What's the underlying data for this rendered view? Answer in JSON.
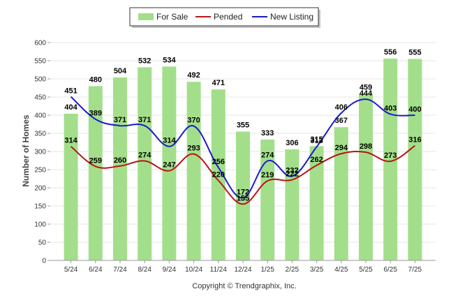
{
  "legend": {
    "items": [
      {
        "label": "For Sale",
        "color": "#a3df8a",
        "kind": "bar"
      },
      {
        "label": "Pended",
        "color": "#b81414",
        "kind": "line"
      },
      {
        "label": "New Listing",
        "color": "#1a1acc",
        "kind": "line"
      }
    ]
  },
  "copyright": "Copyright © Trendgraphix, Inc.",
  "chart_data": {
    "type": "bar",
    "ylabel": "Number of Homes",
    "xlabel": "",
    "ylim": [
      0,
      600
    ],
    "yticks": [
      0,
      50,
      100,
      150,
      200,
      250,
      300,
      350,
      400,
      450,
      500,
      550,
      600
    ],
    "categories": [
      "5/24",
      "6/24",
      "7/24",
      "8/24",
      "9/24",
      "10/24",
      "11/24",
      "12/24",
      "1/25",
      "2/25",
      "3/25",
      "4/25",
      "5/25",
      "6/25",
      "7/25"
    ],
    "grid": true,
    "legend_position": "top-center",
    "series": [
      {
        "name": "For Sale",
        "type": "bar",
        "color": "#a3df8a",
        "values": [
          404,
          480,
          504,
          532,
          534,
          492,
          471,
          355,
          333,
          306,
          315,
          367,
          459,
          556,
          555
        ]
      },
      {
        "name": "Pended",
        "type": "line",
        "color": "#b81414",
        "values": [
          314,
          259,
          260,
          274,
          247,
          293,
          220,
          155,
          219,
          222,
          262,
          294,
          298,
          273,
          316
        ]
      },
      {
        "name": "New Listing",
        "type": "line",
        "color": "#1a1acc",
        "values": [
          451,
          389,
          371,
          371,
          314,
          370,
          256,
          172,
          274,
          232,
          313,
          406,
          444,
          403,
          400
        ]
      }
    ]
  }
}
